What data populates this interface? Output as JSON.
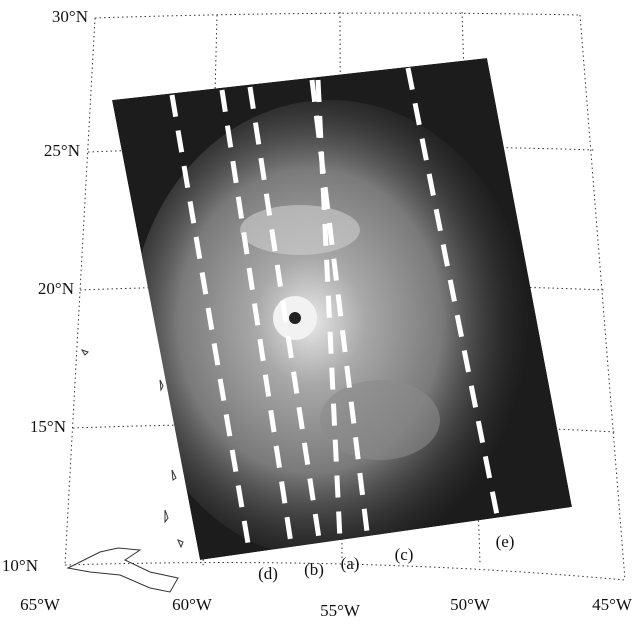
{
  "map": {
    "latitude_labels": [
      "30°N",
      "25°N",
      "20°N",
      "15°N",
      "10°N"
    ],
    "longitude_labels": [
      "65°W",
      "60°W",
      "55°W",
      "50°W",
      "45°W"
    ],
    "swath_labels": [
      "(a)",
      "(b)",
      "(c)",
      "(d)",
      "(e)"
    ]
  }
}
